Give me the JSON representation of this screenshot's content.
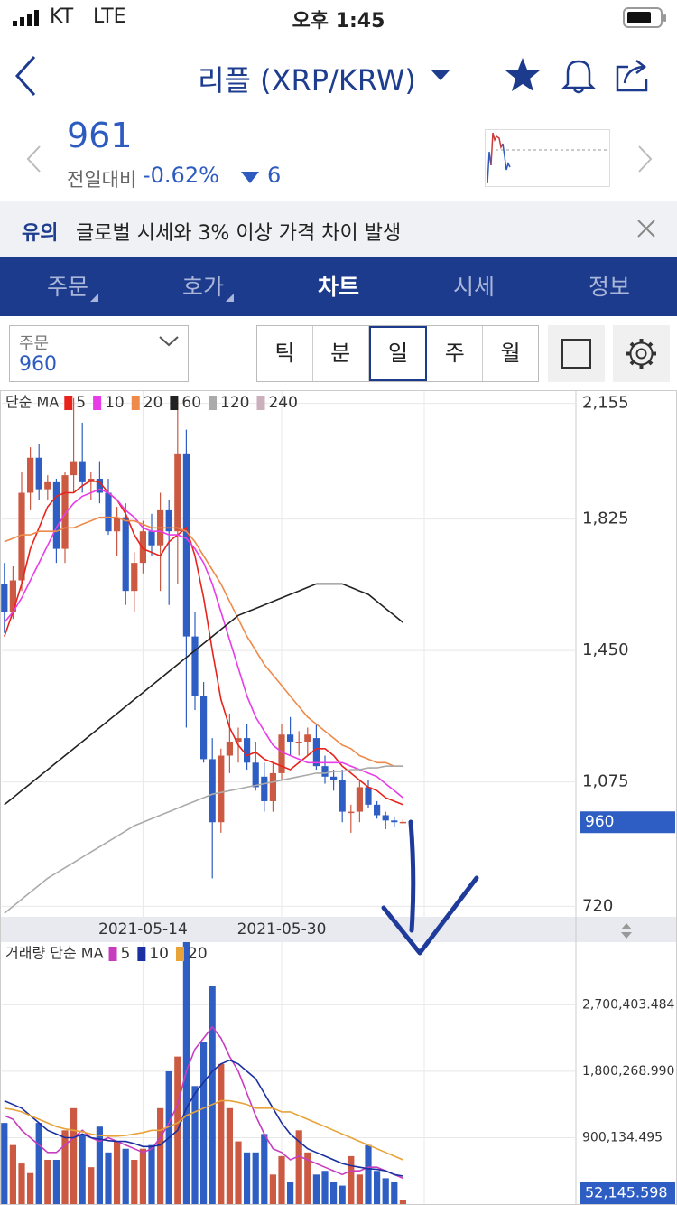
{
  "status_bar": {
    "carrier": "KT",
    "network": "LTE",
    "time": "오후 1:45"
  },
  "header": {
    "title": "리플 (XRP/KRW)"
  },
  "price": {
    "value": "961",
    "change_label": "전일대비",
    "change_percent": "-0.62%",
    "change": "6"
  },
  "notice": {
    "tag": "유의",
    "text": "글로벌 시세와 3% 이상 가격 차이 발생"
  },
  "tabs": [
    "주문",
    "호가",
    "차트",
    "시세",
    "정보"
  ],
  "order": {
    "label": "주문",
    "value": "960"
  },
  "intervals": [
    "틱",
    "분",
    "일",
    "주",
    "월"
  ],
  "chart_data": [
    {
      "type": "candlestick",
      "legend_title": "단순 MA",
      "categories": [
        null,
        null,
        null,
        null,
        null,
        null,
        null,
        null,
        null,
        null,
        null,
        null,
        null,
        null,
        null,
        null,
        "2021-05-14",
        null,
        null,
        null,
        null,
        null,
        null,
        null,
        null,
        null,
        null,
        null,
        null,
        null,
        null,
        null,
        "2021-05-30",
        null,
        null,
        null,
        null,
        null,
        null,
        null,
        null,
        null,
        null,
        null,
        null,
        null,
        null
      ],
      "open": [
        1640,
        1560,
        1650,
        1900,
        2000,
        1910,
        1930,
        1740,
        1950,
        1990,
        1930,
        1940,
        1900,
        1790,
        1830,
        1620,
        1700,
        1790,
        1750,
        1850,
        1790,
        2010,
        1490,
        1320,
        1140,
        960,
        1150,
        1190,
        1200,
        1130,
        1090,
        1020,
        1100,
        1210,
        1190,
        1190,
        1200,
        1120,
        1090,
        1080,
        990,
        990,
        1060,
        1010,
        980,
        965,
        960
      ],
      "high": [
        1700,
        1690,
        1960,
        2030,
        2040,
        1950,
        1940,
        1960,
        2170,
        2100,
        1960,
        1990,
        1940,
        1860,
        1870,
        1730,
        1820,
        1840,
        1900,
        1880,
        2170,
        2080,
        1560,
        1360,
        1200,
        1170,
        1270,
        1230,
        1240,
        1190,
        1130,
        1130,
        1240,
        1260,
        1220,
        1230,
        1240,
        1150,
        1110,
        1110,
        1010,
        1080,
        1080,
        1020,
        990,
        975,
        968
      ],
      "low": [
        1500,
        1540,
        1620,
        1850,
        1880,
        1880,
        1700,
        1700,
        1900,
        1900,
        1880,
        1870,
        1780,
        1720,
        1580,
        1560,
        1670,
        1720,
        1620,
        1580,
        1640,
        1230,
        1280,
        1130,
        800,
        930,
        1100,
        1130,
        1110,
        1050,
        990,
        990,
        1080,
        1150,
        1150,
        1150,
        1110,
        1070,
        1050,
        960,
        930,
        960,
        1000,
        970,
        940,
        945,
        955
      ],
      "close": [
        1560,
        1650,
        1900,
        2000,
        1910,
        1930,
        1740,
        1950,
        1990,
        1930,
        1940,
        1900,
        1790,
        1830,
        1620,
        1700,
        1790,
        1750,
        1850,
        1790,
        2010,
        1490,
        1320,
        1140,
        960,
        1150,
        1190,
        1200,
        1130,
        1060,
        1020,
        1100,
        1210,
        1190,
        1190,
        1210,
        1120,
        1090,
        1080,
        990,
        990,
        1060,
        1010,
        980,
        965,
        960,
        961
      ],
      "up_color": "#cc5a43",
      "down_color": "#2e5ec3",
      "ylim": [
        690,
        2190
      ],
      "yticks": [
        {
          "value": 2155,
          "label": "2,155"
        },
        {
          "value": 1825,
          "label": "1,825"
        },
        {
          "value": 1450,
          "label": "1,450"
        },
        {
          "value": 1075,
          "label": "1,075"
        },
        720
      ],
      "grid": true,
      "current": 960,
      "series": [
        {
          "name": "5",
          "color": "#e8231c",
          "values": [
            1490,
            1560,
            1640,
            1740,
            1800,
            1860,
            1890,
            1900,
            1900,
            1920,
            1935,
            1930,
            1900,
            1880,
            1840,
            1780,
            1740,
            1730,
            1720,
            1760,
            1780,
            1800,
            1720,
            1600,
            1450,
            1310,
            1230,
            1180,
            1150,
            1160,
            1140,
            1130,
            1120,
            1110,
            1130,
            1150,
            1170,
            1170,
            1150,
            1120,
            1100,
            1080,
            1060,
            1050,
            1030,
            1020,
            1010
          ]
        },
        {
          "name": "10",
          "color": "#e83ce8",
          "values": [
            1530,
            1560,
            1600,
            1650,
            1700,
            1750,
            1800,
            1840,
            1870,
            1890,
            1900,
            1910,
            1900,
            1880,
            1850,
            1830,
            1800,
            1790,
            1790,
            1780,
            1780,
            1770,
            1740,
            1700,
            1640,
            1560,
            1480,
            1400,
            1320,
            1260,
            1220,
            1180,
            1160,
            1150,
            1140,
            1130,
            1130,
            1130,
            1130,
            1130,
            1120,
            1110,
            1100,
            1090,
            1070,
            1050,
            1030
          ]
        },
        {
          "name": "20",
          "color": "#ee8a4a",
          "values": [
            1760,
            1770,
            1780,
            1780,
            1790,
            1790,
            1790,
            1800,
            1800,
            1810,
            1820,
            1830,
            1830,
            1830,
            1820,
            1820,
            1810,
            1800,
            1800,
            1800,
            1800,
            1790,
            1760,
            1720,
            1680,
            1640,
            1590,
            1540,
            1490,
            1450,
            1410,
            1380,
            1350,
            1320,
            1290,
            1260,
            1240,
            1220,
            1200,
            1180,
            1170,
            1150,
            1140,
            1130,
            1130,
            1120,
            1120
          ]
        },
        {
          "name": "60",
          "color": "#222222",
          "values": [
            1010,
            1030,
            1050,
            1070,
            1090,
            1110,
            1130,
            1150,
            1170,
            1190,
            1210,
            1230,
            1250,
            1270,
            1290,
            1310,
            1330,
            1350,
            1370,
            1390,
            1410,
            1430,
            1450,
            1470,
            1490,
            1510,
            1530,
            1550,
            1560,
            1570,
            1580,
            1590,
            1600,
            1610,
            1620,
            1630,
            1640,
            1640,
            1640,
            1640,
            1630,
            1620,
            1610,
            1590,
            1570,
            1550,
            1530
          ]
        },
        {
          "name": "120",
          "color": "#aaaaaa",
          "values": [
            700,
            720,
            740,
            760,
            780,
            800,
            815,
            830,
            845,
            860,
            875,
            890,
            905,
            920,
            935,
            950,
            960,
            970,
            980,
            990,
            1000,
            1010,
            1020,
            1030,
            1040,
            1045,
            1050,
            1055,
            1060,
            1065,
            1070,
            1075,
            1080,
            1085,
            1090,
            1095,
            1100,
            1100,
            1105,
            1105,
            1110,
            1110,
            1115,
            1115,
            1120,
            1120,
            1120
          ]
        },
        {
          "name": "240",
          "color": "#c9b0bb"
        }
      ]
    },
    {
      "type": "bar",
      "legend_title": "거래량 단순 MA",
      "values": [
        1100000,
        800000,
        550000,
        420000,
        1100000,
        600000,
        600000,
        1000000,
        1300000,
        950000,
        500000,
        1050000,
        700000,
        850000,
        750000,
        600000,
        750000,
        800000,
        1300000,
        1800000,
        2000000,
        3550000,
        1600000,
        2200000,
        2950000,
        1900000,
        1300000,
        850000,
        700000,
        700000,
        950000,
        400000,
        650000,
        300000,
        1000000,
        700000,
        400000,
        450000,
        300000,
        250000,
        650000,
        400000,
        800000,
        450000,
        350000,
        300000,
        52145.598
      ],
      "ylim": [
        0,
        3550000
      ],
      "yticks": [
        {
          "value": 2700403.484,
          "label": "2,700,403.484"
        },
        {
          "value": 1800268.99,
          "label": "1,800,268.990"
        },
        {
          "value": 900134.495,
          "label": "900,134.495"
        }
      ],
      "grid": true,
      "current": {
        "value": 52145.598,
        "label": "52,145.598"
      },
      "series": [
        {
          "name": "5",
          "color": "#c83cc0",
          "values": [
            1200000,
            1150000,
            1000000,
            900000,
            800000,
            700000,
            700000,
            800000,
            900000,
            1000000,
            900000,
            850000,
            900000,
            850000,
            800000,
            750000,
            700000,
            750000,
            900000,
            1100000,
            1350000,
            1800000,
            2100000,
            2250000,
            2400000,
            2250000,
            2000000,
            1800000,
            1500000,
            1200000,
            950000,
            750000,
            700000,
            600000,
            650000,
            600000,
            550000,
            500000,
            450000,
            400000,
            450000,
            450000,
            500000,
            500000,
            450000,
            400000,
            350000
          ]
        },
        {
          "name": "10",
          "color": "#1a2fa0",
          "values": [
            1400000,
            1350000,
            1300000,
            1200000,
            1100000,
            1000000,
            950000,
            900000,
            900000,
            950000,
            900000,
            880000,
            860000,
            850000,
            850000,
            820000,
            780000,
            780000,
            800000,
            900000,
            1000000,
            1300000,
            1500000,
            1650000,
            1800000,
            1900000,
            1950000,
            1900000,
            1800000,
            1700000,
            1500000,
            1300000,
            1100000,
            950000,
            850000,
            750000,
            700000,
            650000,
            600000,
            550000,
            520000,
            500000,
            480000,
            470000,
            450000,
            400000,
            380000
          ]
        },
        {
          "name": "20",
          "color": "#e8a33a",
          "values": [
            1300000,
            1280000,
            1250000,
            1200000,
            1150000,
            1100000,
            1050000,
            1020000,
            1000000,
            980000,
            950000,
            930000,
            920000,
            920000,
            930000,
            950000,
            970000,
            1000000,
            1000000,
            1050000,
            1100000,
            1200000,
            1250000,
            1300000,
            1350000,
            1400000,
            1400000,
            1380000,
            1350000,
            1300000,
            1300000,
            1300000,
            1250000,
            1250000,
            1200000,
            1150000,
            1100000,
            1050000,
            1000000,
            950000,
            900000,
            850000,
            800000,
            750000,
            700000,
            650000,
            600000
          ]
        }
      ]
    }
  ]
}
